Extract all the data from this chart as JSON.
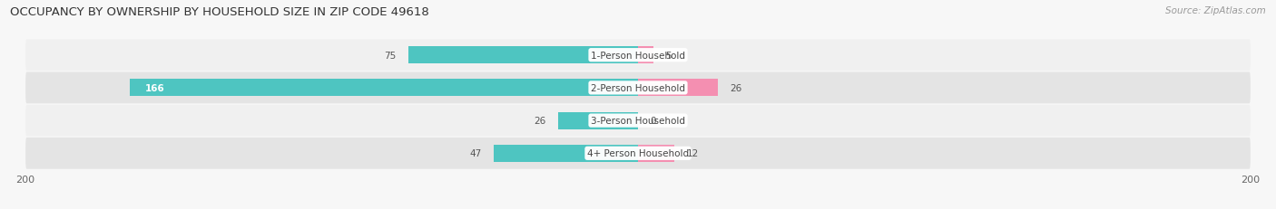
{
  "title": "OCCUPANCY BY OWNERSHIP BY HOUSEHOLD SIZE IN ZIP CODE 49618",
  "source": "Source: ZipAtlas.com",
  "categories": [
    "1-Person Household",
    "2-Person Household",
    "3-Person Household",
    "4+ Person Household"
  ],
  "owner_values": [
    75,
    166,
    26,
    47
  ],
  "renter_values": [
    5,
    26,
    0,
    12
  ],
  "owner_color": "#4ec5c1",
  "renter_color": "#f48fb1",
  "row_bg_light": "#f0f0f0",
  "row_bg_dark": "#e4e4e4",
  "xlim": 200,
  "bar_height": 0.52,
  "title_fontsize": 9.5,
  "source_fontsize": 7.5,
  "cat_label_fontsize": 7.5,
  "value_fontsize": 7.5,
  "legend_fontsize": 8,
  "axis_label_fontsize": 8,
  "background_color": "#f7f7f7"
}
